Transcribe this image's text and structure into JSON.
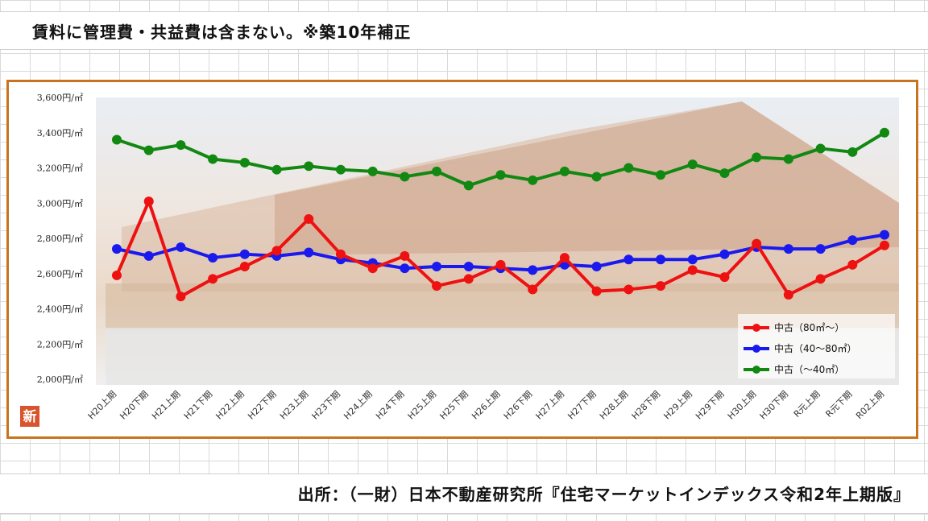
{
  "header": {
    "note": "賃料に管理費・共益費は含まない。※築10年補正"
  },
  "footer": {
    "source": "出所：（一財）日本不動産研究所『住宅マーケットインデックス令和2年上期版』"
  },
  "badge": {
    "label": "新"
  },
  "colors": {
    "frame": "#c8741e",
    "red": "#ee1111",
    "blue": "#1a1aee",
    "green": "#118811"
  },
  "chart_data": {
    "type": "line",
    "categories": [
      "H20上期",
      "H20下期",
      "H21上期",
      "H21下期",
      "H22上期",
      "H22下期",
      "H23上期",
      "H23下期",
      "H24上期",
      "H24下期",
      "H25上期",
      "H25下期",
      "H26上期",
      "H26下期",
      "H27上期",
      "H27下期",
      "H28上期",
      "H28下期",
      "H29上期",
      "H29下期",
      "H30上期",
      "H30下期",
      "R元上期",
      "R元下期",
      "R02上期"
    ],
    "ylim": [
      2000,
      3600
    ],
    "yticks": [
      2000,
      2200,
      2400,
      2600,
      2800,
      3000,
      3200,
      3400,
      3600
    ],
    "ytick_labels": [
      "2,000円/㎡",
      "2,200円/㎡",
      "2,400円/㎡",
      "2,600円/㎡",
      "2,800円/㎡",
      "3,000円/㎡",
      "3,200円/㎡",
      "3,400円/㎡",
      "3,600円/㎡"
    ],
    "legend_position": "bottom-right",
    "series": [
      {
        "name": "中古（80㎡～）",
        "color": "#ee1111",
        "values": [
          2590,
          3010,
          2470,
          2570,
          2640,
          2730,
          2910,
          2710,
          2630,
          2700,
          2530,
          2570,
          2650,
          2510,
          2690,
          2500,
          2510,
          2530,
          2620,
          2580,
          2770,
          2480,
          2570,
          2650,
          2760
        ]
      },
      {
        "name": "中古（40～80㎡）",
        "color": "#1a1aee",
        "values": [
          2740,
          2700,
          2750,
          2690,
          2710,
          2700,
          2720,
          2680,
          2660,
          2630,
          2640,
          2640,
          2630,
          2620,
          2650,
          2640,
          2680,
          2680,
          2680,
          2710,
          2750,
          2740,
          2740,
          2790,
          2820
        ]
      },
      {
        "name": "中古（～40㎡）",
        "color": "#118811",
        "values": [
          3360,
          3300,
          3330,
          3250,
          3230,
          3190,
          3210,
          3190,
          3180,
          3150,
          3180,
          3100,
          3160,
          3130,
          3180,
          3150,
          3200,
          3160,
          3220,
          3170,
          3260,
          3250,
          3310,
          3290,
          3400
        ]
      }
    ]
  }
}
